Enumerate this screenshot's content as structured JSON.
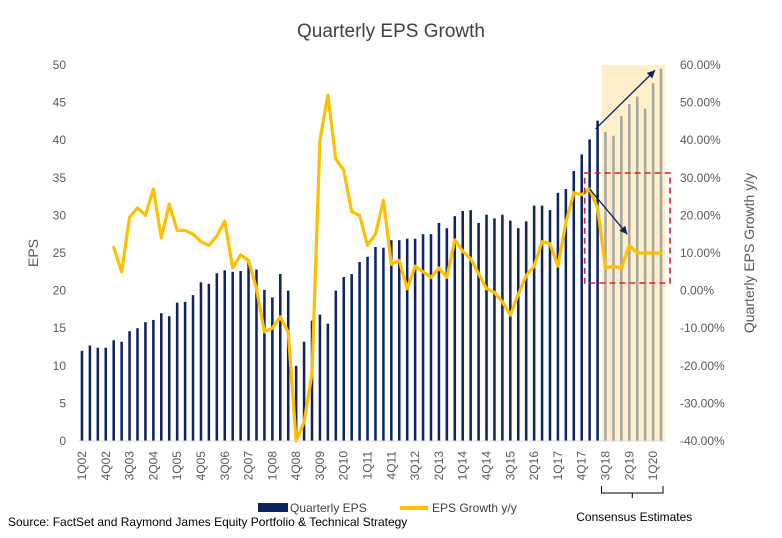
{
  "chart_data": {
    "type": "bar+line",
    "title": "Quarterly EPS Growth",
    "ylabel_left": "EPS",
    "ylabel_right": "Quarterly EPS Growth  y/y",
    "ylim_left": [
      0,
      50
    ],
    "ylim_right": [
      -40,
      60
    ],
    "left_ticks": [
      "0",
      "5",
      "10",
      "15",
      "20",
      "25",
      "30",
      "35",
      "40",
      "45",
      "50"
    ],
    "right_ticks": [
      "-40.00%",
      "-30.00%",
      "-20.00%",
      "-10.00%",
      "0.00%",
      "10.00%",
      "20.00%",
      "30.00%",
      "40.00%",
      "50.00%",
      "60.00%"
    ],
    "x_tick_labels": [
      "1Q02",
      "4Q02",
      "3Q03",
      "2Q04",
      "1Q05",
      "4Q05",
      "3Q06",
      "2Q07",
      "1Q08",
      "4Q08",
      "3Q09",
      "2Q10",
      "1Q11",
      "4Q11",
      "3Q12",
      "2Q13",
      "1Q14",
      "4Q14",
      "3Q15",
      "2Q16",
      "1Q17",
      "4Q17",
      "3Q18",
      "2Q19",
      "1Q20"
    ],
    "x_tick_every": 3,
    "series": [
      {
        "name": "Quarterly EPS",
        "kind": "bar",
        "color": "#0d2461",
        "estimate_color": "#a6a6a6",
        "values": [
          12.0,
          12.7,
          12.4,
          12.4,
          13.4,
          13.2,
          14.6,
          15.0,
          15.8,
          16.1,
          17.0,
          16.6,
          18.4,
          18.5,
          19.4,
          21.1,
          20.9,
          22.3,
          22.7,
          22.5,
          22.6,
          23.9,
          22.8,
          20.1,
          19.1,
          22.2,
          20.0,
          10.0,
          13.2,
          16.0,
          16.8,
          15.6,
          20.0,
          21.8,
          22.2,
          23.8,
          24.5,
          25.8,
          25.7,
          26.7,
          26.7,
          26.9,
          26.9,
          27.5,
          27.5,
          29.0,
          28.3,
          29.9,
          30.6,
          30.7,
          29.0,
          30.1,
          29.6,
          30.1,
          29.3,
          28.3,
          29.2,
          31.3,
          31.3,
          30.7,
          33.0,
          33.5,
          35.9,
          38.1,
          40.1,
          42.6,
          41.1,
          40.6,
          43.2,
          44.8,
          45.8,
          44.2,
          47.6,
          49.5
        ]
      },
      {
        "name": "EPS Growth y/y",
        "kind": "line",
        "axis": "right",
        "color": "#ffc000",
        "values": [
          null,
          null,
          null,
          null,
          11.5,
          5.0,
          19.5,
          22.0,
          20.0,
          27.0,
          14.0,
          23.0,
          16.0,
          16.0,
          15.0,
          13.0,
          12.0,
          14.5,
          18.5,
          6.0,
          9.5,
          8.0,
          0.5,
          -11.0,
          -10.0,
          -7.0,
          -11.0,
          -40.0,
          -35.0,
          -22.0,
          40.0,
          52.0,
          35.0,
          32.0,
          21.0,
          20.0,
          12.0,
          15.0,
          24.0,
          7.0,
          8.0,
          0.5,
          6.5,
          5.0,
          3.5,
          6.0,
          3.5,
          13.5,
          10.5,
          8.5,
          4.5,
          0.5,
          -0.5,
          -3.0,
          -6.5,
          -1.0,
          4.0,
          6.5,
          13.0,
          12.5,
          6.5,
          18.0,
          26.0,
          25.5,
          27.0,
          22.0,
          6.0,
          6.5,
          6.0,
          12.0,
          10.0,
          10.0,
          10.0,
          10.0
        ]
      }
    ],
    "estimates_start_index": 66,
    "legend": [
      "Quarterly EPS",
      "EPS Growth y/y"
    ],
    "legend_position": "bottom",
    "annotations": [
      "Consensus Estimates"
    ],
    "source": "Source: FactSet and Raymond James Equity Portfolio & Technical Strategy"
  }
}
